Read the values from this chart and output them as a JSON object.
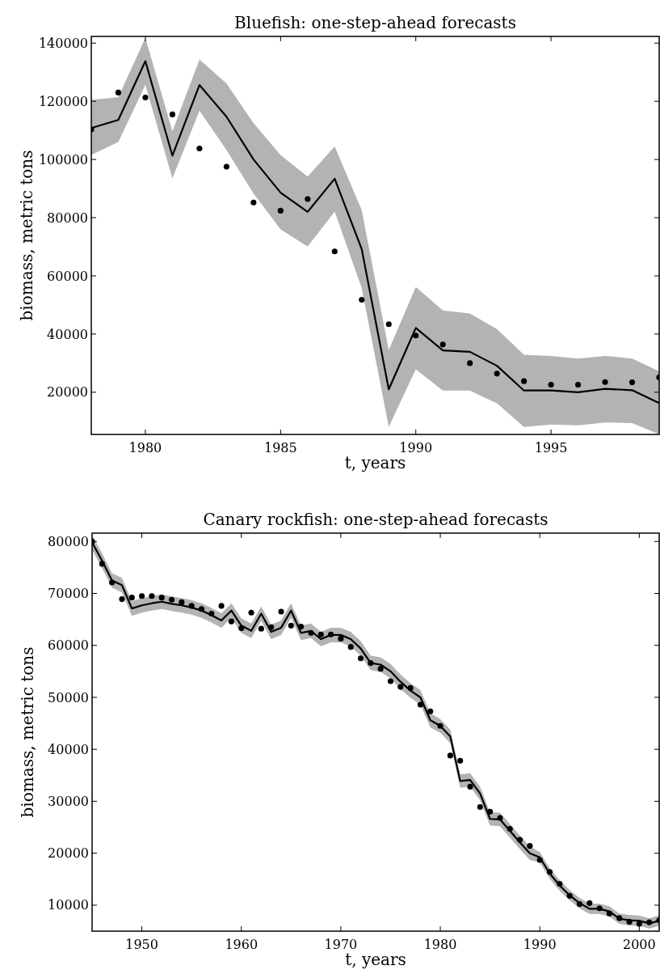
{
  "chart_data": [
    {
      "type": "line",
      "title": "Bluefish: one-step-ahead forecasts",
      "xlabel": "t, years",
      "ylabel": "biomass, metric tons",
      "x": [
        1978,
        1979,
        1980,
        1981,
        1982,
        1983,
        1984,
        1985,
        1986,
        1987,
        1988,
        1989,
        1990,
        1991,
        1992,
        1993,
        1994,
        1995,
        1996,
        1997,
        1998,
        1999
      ],
      "xlim": [
        1978,
        1999
      ],
      "xticks": [
        1980,
        1985,
        1990,
        1995
      ],
      "ylim": [
        5500,
        142300
      ],
      "yticks": [
        20000,
        40000,
        60000,
        80000,
        100000,
        120000,
        140000
      ],
      "grid": false,
      "series": [
        {
          "color": "#000000",
          "marker": "none",
          "line_style": "solid",
          "values": [
            110800,
            113600,
            133800,
            101300,
            125600,
            114700,
            100000,
            88600,
            82000,
            93400,
            69200,
            21000,
            42100,
            34400,
            33900,
            29100,
            20600,
            20600,
            20000,
            21200,
            20700,
            16300
          ],
          "upper": [
            120500,
            121400,
            141800,
            109700,
            134400,
            126100,
            112500,
            101500,
            94100,
            104500,
            82600,
            34500,
            56200,
            48100,
            47100,
            41700,
            32900,
            32500,
            31600,
            32500,
            31600,
            27200
          ],
          "lower": [
            101600,
            106000,
            125600,
            93500,
            116800,
            103200,
            88300,
            76000,
            70100,
            82100,
            55800,
            8100,
            27900,
            20600,
            20600,
            16200,
            8100,
            8900,
            8600,
            9600,
            9400,
            5600
          ]
        },
        {
          "type": "scatter",
          "color": "#000000",
          "marker": "circle",
          "values": [
            110300,
            123000,
            121300,
            115500,
            103800,
            97500,
            85200,
            82400,
            86400,
            68400,
            51800,
            43400,
            39500,
            36400,
            30000,
            26400,
            23800,
            22600,
            22600,
            23500,
            23400,
            25100
          ]
        }
      ]
    },
    {
      "type": "line",
      "title": "Canary rockfish: one-step-ahead forecasts",
      "xlabel": "t, years",
      "ylabel": "biomass, metric tons",
      "x": [
        1945,
        1946,
        1947,
        1948,
        1949,
        1950,
        1951,
        1952,
        1953,
        1954,
        1955,
        1956,
        1957,
        1958,
        1959,
        1960,
        1961,
        1962,
        1963,
        1964,
        1965,
        1966,
        1967,
        1968,
        1969,
        1970,
        1971,
        1972,
        1973,
        1974,
        1975,
        1976,
        1977,
        1978,
        1979,
        1980,
        1981,
        1982,
        1983,
        1984,
        1985,
        1986,
        1987,
        1988,
        1989,
        1990,
        1991,
        1992,
        1993,
        1994,
        1995,
        1996,
        1997,
        1998,
        1999,
        2000,
        2001,
        2002
      ],
      "xlim": [
        1945,
        2002
      ],
      "xticks": [
        1950,
        1960,
        1970,
        1980,
        1990,
        2000
      ],
      "ylim": [
        5000,
        81600
      ],
      "yticks": [
        10000,
        20000,
        30000,
        40000,
        50000,
        60000,
        70000,
        80000
      ],
      "grid": false,
      "series": [
        {
          "color": "#000000",
          "marker": "none",
          "line_style": "solid",
          "values": [
            79800,
            76300,
            72500,
            71600,
            67100,
            67700,
            68100,
            68400,
            68000,
            67700,
            67300,
            66700,
            65800,
            64800,
            66700,
            63800,
            62800,
            66100,
            62600,
            63400,
            66700,
            62400,
            62800,
            61200,
            62000,
            62000,
            61200,
            59400,
            56600,
            56300,
            55000,
            53000,
            51300,
            50000,
            45600,
            44500,
            42500,
            33900,
            34100,
            31500,
            26600,
            26500,
            24300,
            22100,
            20000,
            19200,
            16100,
            13800,
            11900,
            10400,
            9300,
            9300,
            8800,
            7400,
            7100,
            7000,
            6500,
            7000
          ],
          "upper": [
            81200,
            77700,
            73900,
            73000,
            68500,
            69100,
            69500,
            69800,
            69400,
            69100,
            68700,
            68100,
            67200,
            66200,
            68100,
            65200,
            64200,
            67500,
            64000,
            64800,
            68100,
            63800,
            64200,
            62600,
            63400,
            63400,
            62600,
            60800,
            58000,
            57700,
            56400,
            54400,
            52700,
            51400,
            47000,
            45800,
            43800,
            35200,
            35400,
            32800,
            27900,
            27800,
            25600,
            23400,
            21300,
            20200,
            17100,
            14800,
            12900,
            11400,
            10300,
            10300,
            9800,
            8400,
            8100,
            8000,
            7500,
            8000
          ],
          "lower": [
            78400,
            74900,
            71100,
            70200,
            65700,
            66300,
            66700,
            67000,
            66600,
            66300,
            65900,
            65300,
            64400,
            63400,
            65300,
            62400,
            61400,
            64700,
            61200,
            62000,
            65300,
            61000,
            61400,
            59800,
            60600,
            60600,
            59800,
            58000,
            55200,
            54900,
            53600,
            51600,
            49900,
            48600,
            44200,
            43200,
            41200,
            32600,
            32800,
            30200,
            25300,
            25200,
            23000,
            20800,
            18700,
            18200,
            15100,
            12800,
            10900,
            9400,
            8300,
            8300,
            7800,
            6400,
            6100,
            6000,
            5500,
            6000
          ]
        },
        {
          "type": "scatter",
          "color": "#000000",
          "marker": "circle",
          "values": [
            80000,
            75700,
            72100,
            68900,
            69200,
            69500,
            69500,
            69200,
            68800,
            68300,
            67600,
            67000,
            66100,
            67600,
            64600,
            63300,
            66300,
            63200,
            63500,
            66500,
            63800,
            63600,
            62400,
            62100,
            62100,
            61300,
            59700,
            57500,
            56600,
            55500,
            53100,
            52000,
            51800,
            48600,
            47300,
            44500,
            38800,
            37800,
            32800,
            28900,
            28000,
            26800,
            24700,
            22600,
            21400,
            18700,
            16400,
            14100,
            11800,
            10200,
            10400,
            9400,
            8400,
            7500,
            6800,
            6400,
            6700,
            7100
          ]
        }
      ]
    }
  ]
}
